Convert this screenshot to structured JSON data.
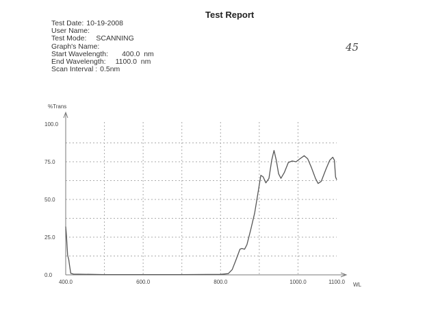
{
  "report": {
    "title": "Test Report",
    "handwritten_note": "45",
    "fields": [
      {
        "label": "Test Date:",
        "value": "10-19-2008"
      },
      {
        "label": "User Name:",
        "value": ""
      },
      {
        "label": "Test Mode:",
        "value": "SCANNING"
      },
      {
        "label": "Graph's Name:",
        "value": ""
      },
      {
        "label": "Start Wavelength:",
        "value": "400.0  nm"
      },
      {
        "label": "End Wavelength:",
        "value": "1100.0  nm"
      },
      {
        "label": "Scan Interval :",
        "value": "0.5nm"
      }
    ]
  },
  "chart_data": {
    "type": "line",
    "title": "",
    "xlabel": "WL",
    "ylabel": "%Trans",
    "xlim": [
      400,
      1100
    ],
    "ylim": [
      0,
      100
    ],
    "x_ticks": [
      "400.0",
      "600.0",
      "800.0",
      "1000.0",
      "1100.0"
    ],
    "y_ticks": [
      "0.0",
      "25.0",
      "50.0",
      "75.0",
      "100.0"
    ],
    "grid": true,
    "line_color": "#555555",
    "series": [
      {
        "x": [
          400,
          402,
          405,
          408,
          410,
          413,
          420,
          500,
          600,
          700,
          800,
          820,
          830,
          840,
          850,
          855,
          862,
          868,
          878,
          888,
          897,
          904,
          910,
          917,
          925,
          932,
          938,
          944,
          950,
          956,
          965,
          975,
          985,
          995,
          1005,
          1016,
          1025,
          1035,
          1045,
          1052,
          1060,
          1072,
          1082,
          1090,
          1094,
          1097,
          1100
        ],
        "y": [
          32,
          26,
          13,
          10,
          6,
          1,
          0.5,
          0.2,
          0.2,
          0.2,
          0.3,
          0.8,
          3.5,
          10,
          17,
          17.5,
          17,
          20,
          30,
          41,
          55,
          66,
          65,
          61,
          64,
          76,
          82.5,
          76,
          67,
          64,
          68,
          74.5,
          75.5,
          75,
          77,
          79,
          77,
          71,
          64,
          60.6,
          62,
          70,
          76,
          78,
          76,
          65,
          63
        ]
      }
    ]
  }
}
